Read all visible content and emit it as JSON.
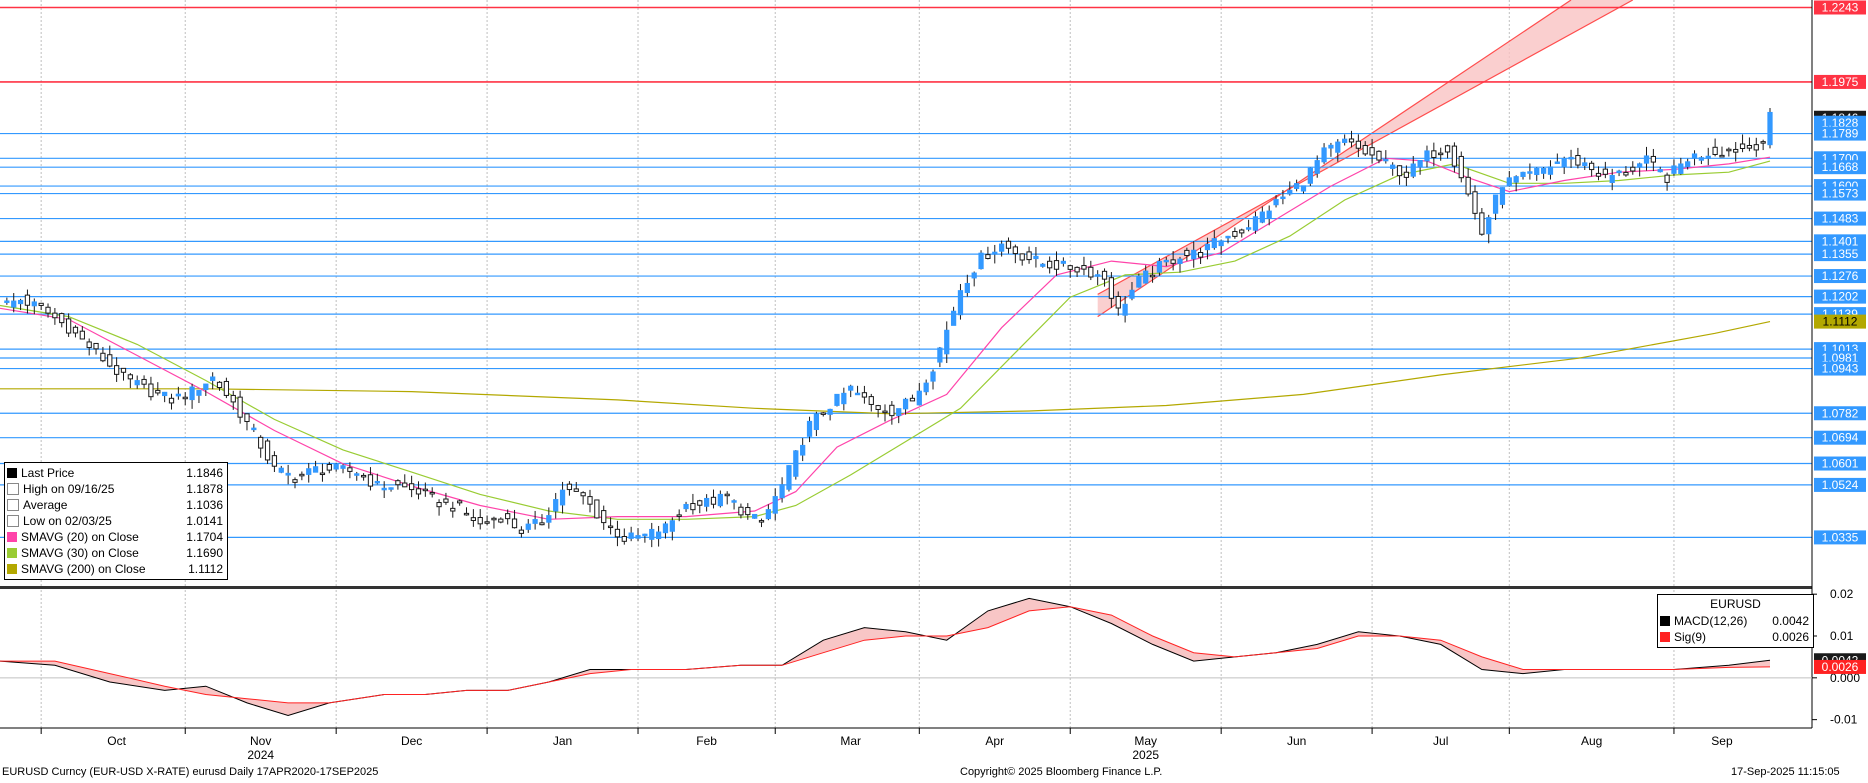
{
  "chart_data": {
    "type": "candlestick",
    "ticker": "EURUSD Curncy (EUR-USD X-RATE)",
    "period_label": "eurusd  Daily 17APR2020-17SEP2025",
    "copyright": "Copyright© 2025 Bloomberg Finance L.P.",
    "timestamp": "17-Sep-2025 11:15:05",
    "x_months": [
      "Oct",
      "Nov",
      "Dec",
      "Jan",
      "Feb",
      "Mar",
      "Apr",
      "May",
      "Jun",
      "Jul",
      "Aug",
      "Sep"
    ],
    "x_years": [
      "2024",
      "2025"
    ],
    "y_range": [
      1.016,
      1.227
    ],
    "grid": true,
    "colors": {
      "up": "#3399ff",
      "down": "#1a1a1a",
      "hline": "#3399ff",
      "resistance": "#ff3344",
      "sma20": "#ff44aa",
      "sma30": "#99cc33",
      "sma200": "#b3a800",
      "channel_fill": "#f9c3c3",
      "channel_line": "#ff4d4d",
      "macd": "#000000",
      "signal": "#ff2222",
      "macd_fill": "#f4a0a0"
    },
    "horizontal_levels": [
      1.2243,
      1.1975,
      1.1789,
      1.17,
      1.1668,
      1.16,
      1.1573,
      1.1483,
      1.1401,
      1.1355,
      1.1276,
      1.1202,
      1.1139,
      1.1013,
      1.0981,
      1.0943,
      1.0782,
      1.0694,
      1.0601,
      1.0524,
      1.0335
    ],
    "resistance_levels": [
      1.2243,
      1.1975
    ],
    "right_labels": [
      {
        "value": 1.2243,
        "text": "1.2243",
        "bg": "#ff3344",
        "fg": "#ffffff"
      },
      {
        "value": 1.1975,
        "text": "1.1975",
        "bg": "#ff3344",
        "fg": "#ffffff"
      },
      {
        "value": 1.1846,
        "text": "1.1846",
        "bg": "#1a1a1a",
        "fg": "#ffffff"
      },
      {
        "value": 1.1828,
        "text": "1.1828",
        "bg": "#3399ff",
        "fg": "#ffffff"
      },
      {
        "value": 1.1789,
        "text": "1.1789",
        "bg": "#3399ff",
        "fg": "#ffffff"
      },
      {
        "value": 1.17,
        "text": "1.1700",
        "bg": "#3399ff",
        "fg": "#ffffff"
      },
      {
        "value": 1.1668,
        "text": "1.1668",
        "bg": "#3399ff",
        "fg": "#ffffff"
      },
      {
        "value": 1.16,
        "text": "1.1600",
        "bg": "#3399ff",
        "fg": "#ffffff"
      },
      {
        "value": 1.1573,
        "text": "1.1573",
        "bg": "#3399ff",
        "fg": "#ffffff"
      },
      {
        "value": 1.1483,
        "text": "1.1483",
        "bg": "#3399ff",
        "fg": "#ffffff"
      },
      {
        "value": 1.1401,
        "text": "1.1401",
        "bg": "#3399ff",
        "fg": "#ffffff"
      },
      {
        "value": 1.1355,
        "text": "1.1355",
        "bg": "#3399ff",
        "fg": "#ffffff"
      },
      {
        "value": 1.1276,
        "text": "1.1276",
        "bg": "#3399ff",
        "fg": "#ffffff"
      },
      {
        "value": 1.1202,
        "text": "1.1202",
        "bg": "#3399ff",
        "fg": "#ffffff"
      },
      {
        "value": 1.1139,
        "text": "1.1139",
        "bg": "#3399ff",
        "fg": "#ffffff"
      },
      {
        "value": 1.1112,
        "text": "1.1112",
        "bg": "#b3a800",
        "fg": "#000000"
      },
      {
        "value": 1.1013,
        "text": "1.1013",
        "bg": "#3399ff",
        "fg": "#ffffff"
      },
      {
        "value": 1.0981,
        "text": "1.0981",
        "bg": "#3399ff",
        "fg": "#ffffff"
      },
      {
        "value": 1.0943,
        "text": "1.0943",
        "bg": "#3399ff",
        "fg": "#ffffff"
      },
      {
        "value": 1.0782,
        "text": "1.0782",
        "bg": "#3399ff",
        "fg": "#ffffff"
      },
      {
        "value": 1.0694,
        "text": "1.0694",
        "bg": "#3399ff",
        "fg": "#ffffff"
      },
      {
        "value": 1.0601,
        "text": "1.0601",
        "bg": "#3399ff",
        "fg": "#ffffff"
      },
      {
        "value": 1.0524,
        "text": "1.0524",
        "bg": "#3399ff",
        "fg": "#ffffff"
      },
      {
        "value": 1.0335,
        "text": "1.0335",
        "bg": "#3399ff",
        "fg": "#ffffff"
      }
    ],
    "legend": [
      {
        "label": "Last Price",
        "value": "1.1846",
        "color": "#000000"
      },
      {
        "label": "High on 09/16/25",
        "value": "1.1878",
        "color": "#ffffff"
      },
      {
        "label": "Average",
        "value": "1.1036",
        "color": "#ffffff"
      },
      {
        "label": "Low on 02/03/25",
        "value": "1.0141",
        "color": "#ffffff"
      },
      {
        "label": "SMAVG (20)  on Close",
        "value": "1.1704",
        "color": "#ff44aa"
      },
      {
        "label": "SMAVG (30)  on Close",
        "value": "1.1690",
        "color": "#99cc33"
      },
      {
        "label": "SMAVG (200)  on Close",
        "value": "1.1112",
        "color": "#b3a800"
      }
    ],
    "price_path": [
      [
        0,
        1.117
      ],
      [
        3,
        1.119
      ],
      [
        6,
        1.116
      ],
      [
        10,
        1.109
      ],
      [
        14,
        1.1
      ],
      [
        18,
        1.091
      ],
      [
        22,
        1.086
      ],
      [
        25,
        1.083
      ],
      [
        28,
        1.086
      ],
      [
        31,
        1.091
      ],
      [
        34,
        1.082
      ],
      [
        37,
        1.071
      ],
      [
        40,
        1.058
      ],
      [
        43,
        1.055
      ],
      [
        46,
        1.058
      ],
      [
        49,
        1.058
      ],
      [
        52,
        1.057
      ],
      [
        55,
        1.052
      ],
      [
        58,
        1.052
      ],
      [
        61,
        1.05
      ],
      [
        64,
        1.046
      ],
      [
        67,
        1.044
      ],
      [
        70,
        1.038
      ],
      [
        73,
        1.041
      ],
      [
        76,
        1.036
      ],
      [
        79,
        1.039
      ],
      [
        82,
        1.051
      ],
      [
        85,
        1.048
      ],
      [
        88,
        1.039
      ],
      [
        91,
        1.033
      ],
      [
        94,
        1.034
      ],
      [
        97,
        1.037
      ],
      [
        100,
        1.045
      ],
      [
        103,
        1.046
      ],
      [
        106,
        1.048
      ],
      [
        109,
        1.041
      ],
      [
        111,
        1.039
      ],
      [
        114,
        1.052
      ],
      [
        118,
        1.074
      ],
      [
        121,
        1.081
      ],
      [
        124,
        1.087
      ],
      [
        127,
        1.081
      ],
      [
        130,
        1.079
      ],
      [
        133,
        1.083
      ],
      [
        136,
        1.095
      ],
      [
        138,
        1.108
      ],
      [
        140,
        1.123
      ],
      [
        143,
        1.134
      ],
      [
        146,
        1.139
      ],
      [
        149,
        1.135
      ],
      [
        152,
        1.132
      ],
      [
        155,
        1.131
      ],
      [
        158,
        1.13
      ],
      [
        161,
        1.127
      ],
      [
        163,
        1.115
      ],
      [
        166,
        1.126
      ],
      [
        169,
        1.131
      ],
      [
        172,
        1.135
      ],
      [
        175,
        1.136
      ],
      [
        178,
        1.141
      ],
      [
        181,
        1.144
      ],
      [
        184,
        1.15
      ],
      [
        187,
        1.156
      ],
      [
        190,
        1.162
      ],
      [
        193,
        1.172
      ],
      [
        196,
        1.176
      ],
      [
        199,
        1.172
      ],
      [
        202,
        1.168
      ],
      [
        205,
        1.164
      ],
      [
        208,
        1.171
      ],
      [
        211,
        1.174
      ],
      [
        213,
        1.164
      ],
      [
        215,
        1.15
      ],
      [
        216,
        1.143
      ],
      [
        219,
        1.161
      ],
      [
        222,
        1.163
      ],
      [
        225,
        1.166
      ],
      [
        228,
        1.17
      ],
      [
        231,
        1.168
      ],
      [
        234,
        1.163
      ],
      [
        237,
        1.165
      ],
      [
        240,
        1.169
      ],
      [
        243,
        1.163
      ],
      [
        246,
        1.17
      ],
      [
        249,
        1.172
      ],
      [
        252,
        1.173
      ],
      [
        255,
        1.174
      ],
      [
        257,
        1.176
      ],
      [
        258,
        1.1846
      ]
    ],
    "sma20_path": [
      [
        0,
        1.116
      ],
      [
        10,
        1.112
      ],
      [
        20,
        1.099
      ],
      [
        30,
        1.086
      ],
      [
        40,
        1.072
      ],
      [
        50,
        1.06
      ],
      [
        60,
        1.052
      ],
      [
        70,
        1.045
      ],
      [
        80,
        1.04
      ],
      [
        90,
        1.041
      ],
      [
        100,
        1.041
      ],
      [
        110,
        1.043
      ],
      [
        116,
        1.05
      ],
      [
        122,
        1.066
      ],
      [
        130,
        1.076
      ],
      [
        138,
        1.085
      ],
      [
        146,
        1.109
      ],
      [
        154,
        1.128
      ],
      [
        162,
        1.133
      ],
      [
        170,
        1.131
      ],
      [
        178,
        1.136
      ],
      [
        186,
        1.148
      ],
      [
        194,
        1.16
      ],
      [
        202,
        1.17
      ],
      [
        208,
        1.169
      ],
      [
        214,
        1.163
      ],
      [
        220,
        1.158
      ],
      [
        228,
        1.162
      ],
      [
        236,
        1.165
      ],
      [
        244,
        1.166
      ],
      [
        252,
        1.168
      ],
      [
        258,
        1.1704
      ]
    ],
    "sma30_path": [
      [
        0,
        1.117
      ],
      [
        10,
        1.113
      ],
      [
        20,
        1.103
      ],
      [
        30,
        1.09
      ],
      [
        40,
        1.076
      ],
      [
        50,
        1.065
      ],
      [
        60,
        1.057
      ],
      [
        70,
        1.049
      ],
      [
        80,
        1.043
      ],
      [
        90,
        1.04
      ],
      [
        100,
        1.04
      ],
      [
        110,
        1.041
      ],
      [
        116,
        1.045
      ],
      [
        124,
        1.056
      ],
      [
        132,
        1.068
      ],
      [
        140,
        1.08
      ],
      [
        148,
        1.1
      ],
      [
        156,
        1.12
      ],
      [
        164,
        1.128
      ],
      [
        172,
        1.129
      ],
      [
        180,
        1.133
      ],
      [
        188,
        1.142
      ],
      [
        196,
        1.155
      ],
      [
        204,
        1.164
      ],
      [
        212,
        1.168
      ],
      [
        220,
        1.161
      ],
      [
        228,
        1.161
      ],
      [
        236,
        1.162
      ],
      [
        244,
        1.164
      ],
      [
        252,
        1.165
      ],
      [
        258,
        1.169
      ]
    ],
    "sma200_path": [
      [
        0,
        1.087
      ],
      [
        30,
        1.087
      ],
      [
        60,
        1.086
      ],
      [
        90,
        1.083
      ],
      [
        110,
        1.08
      ],
      [
        130,
        1.078
      ],
      [
        150,
        1.079
      ],
      [
        170,
        1.081
      ],
      [
        190,
        1.085
      ],
      [
        210,
        1.092
      ],
      [
        230,
        1.098
      ],
      [
        250,
        1.107
      ],
      [
        258,
        1.1112
      ]
    ],
    "channel": {
      "lower": [
        [
          160,
          1.113
        ],
        [
          229,
          1.227
        ]
      ],
      "upper": [
        [
          160,
          1.121
        ],
        [
          238,
          1.227
        ]
      ]
    },
    "macd_panel": {
      "title": "EURUSD",
      "y_ticks": [
        0.02,
        0.01,
        0.0,
        -0.01
      ],
      "y_tick_labels": [
        "0.02",
        "0.01",
        "0.000",
        "-0.01"
      ],
      "y_range": [
        -0.012,
        0.021
      ],
      "legend": [
        {
          "label": "MACD(12,26)",
          "value": "0.0042",
          "color": "#000000"
        },
        {
          "label": "Sig(9)",
          "value": "0.0026",
          "color": "#ff2222"
        }
      ],
      "right_labels": [
        {
          "value": 0.0042,
          "text": "0.0042",
          "bg": "#1a1a1a",
          "fg": "#ffffff"
        },
        {
          "value": 0.0026,
          "text": "0.0026",
          "bg": "#ff2222",
          "fg": "#ffffff"
        }
      ],
      "macd_path": [
        [
          0,
          0.004
        ],
        [
          8,
          0.003
        ],
        [
          16,
          -0.001
        ],
        [
          24,
          -0.003
        ],
        [
          30,
          -0.002
        ],
        [
          36,
          -0.006
        ],
        [
          42,
          -0.009
        ],
        [
          48,
          -0.006
        ],
        [
          56,
          -0.004
        ],
        [
          62,
          -0.004
        ],
        [
          68,
          -0.003
        ],
        [
          74,
          -0.003
        ],
        [
          80,
          -0.001
        ],
        [
          86,
          0.002
        ],
        [
          92,
          0.002
        ],
        [
          100,
          0.002
        ],
        [
          108,
          0.003
        ],
        [
          114,
          0.003
        ],
        [
          120,
          0.009
        ],
        [
          126,
          0.012
        ],
        [
          132,
          0.011
        ],
        [
          138,
          0.009
        ],
        [
          144,
          0.016
        ],
        [
          150,
          0.019
        ],
        [
          156,
          0.017
        ],
        [
          162,
          0.013
        ],
        [
          168,
          0.008
        ],
        [
          174,
          0.004
        ],
        [
          180,
          0.005
        ],
        [
          186,
          0.006
        ],
        [
          192,
          0.008
        ],
        [
          198,
          0.011
        ],
        [
          204,
          0.01
        ],
        [
          210,
          0.008
        ],
        [
          216,
          0.002
        ],
        [
          222,
          0.001
        ],
        [
          228,
          0.002
        ],
        [
          236,
          0.002
        ],
        [
          244,
          0.002
        ],
        [
          252,
          0.003
        ],
        [
          258,
          0.0042
        ]
      ],
      "signal_path": [
        [
          0,
          0.004
        ],
        [
          8,
          0.004
        ],
        [
          16,
          0.001
        ],
        [
          24,
          -0.002
        ],
        [
          30,
          -0.004
        ],
        [
          36,
          -0.005
        ],
        [
          42,
          -0.006
        ],
        [
          48,
          -0.006
        ],
        [
          56,
          -0.004
        ],
        [
          62,
          -0.004
        ],
        [
          68,
          -0.003
        ],
        [
          74,
          -0.003
        ],
        [
          80,
          -0.001
        ],
        [
          86,
          0.001
        ],
        [
          92,
          0.002
        ],
        [
          100,
          0.002
        ],
        [
          108,
          0.003
        ],
        [
          114,
          0.003
        ],
        [
          120,
          0.006
        ],
        [
          126,
          0.009
        ],
        [
          132,
          0.01
        ],
        [
          138,
          0.01
        ],
        [
          144,
          0.012
        ],
        [
          150,
          0.016
        ],
        [
          156,
          0.017
        ],
        [
          162,
          0.015
        ],
        [
          168,
          0.01
        ],
        [
          174,
          0.006
        ],
        [
          180,
          0.005
        ],
        [
          186,
          0.006
        ],
        [
          192,
          0.007
        ],
        [
          198,
          0.01
        ],
        [
          204,
          0.01
        ],
        [
          210,
          0.009
        ],
        [
          216,
          0.005
        ],
        [
          222,
          0.002
        ],
        [
          228,
          0.002
        ],
        [
          236,
          0.002
        ],
        [
          244,
          0.002
        ],
        [
          252,
          0.0025
        ],
        [
          258,
          0.0026
        ]
      ]
    }
  }
}
